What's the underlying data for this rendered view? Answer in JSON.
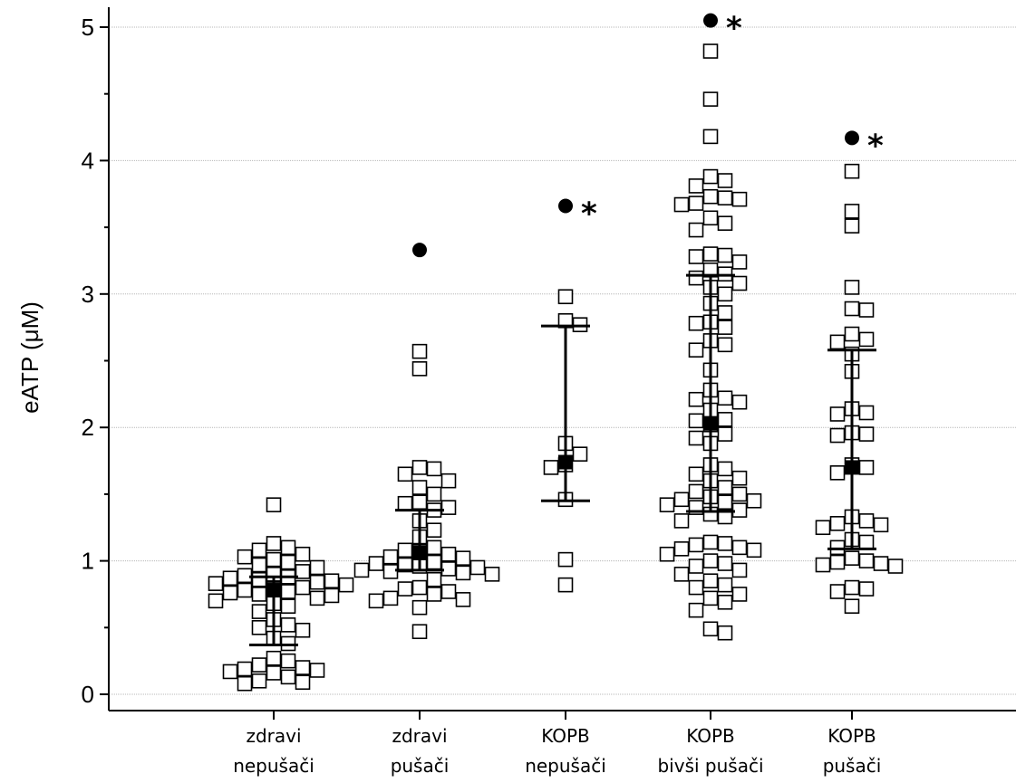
{
  "chart_data": {
    "type": "scatter",
    "ylabel": "eATP (μM)",
    "ylim": [
      0,
      5.2
    ],
    "yticks": [
      "0",
      "1",
      "2",
      "3",
      "4",
      "5"
    ],
    "grid": true,
    "significance_marker": "*",
    "groups": [
      {
        "label_line1": "zdravi",
        "label_line2": "nepušači",
        "median": 0.78,
        "q1": 0.37,
        "q3": 0.88,
        "outlier": null,
        "significant": false,
        "points": [
          1.42,
          1.13,
          1.1,
          1.08,
          1.05,
          1.03,
          1.01,
          0.99,
          0.97,
          0.95,
          0.92,
          0.9,
          0.89,
          0.88,
          0.87,
          0.86,
          0.85,
          0.84,
          0.83,
          0.82,
          0.8,
          0.79,
          0.78,
          0.77,
          0.76,
          0.75,
          0.74,
          0.72,
          0.7,
          0.68,
          0.66,
          0.62,
          0.56,
          0.52,
          0.5,
          0.48,
          0.42,
          0.38,
          0.27,
          0.25,
          0.22,
          0.2,
          0.19,
          0.18,
          0.17,
          0.16,
          0.13,
          0.1,
          0.09,
          0.08
        ]
      },
      {
        "label_line1": "zdravi",
        "label_line2": "pušači",
        "median": 1.06,
        "q1": 0.93,
        "q3": 1.38,
        "outlier": 3.33,
        "significant": false,
        "points": [
          2.57,
          2.44,
          1.7,
          1.69,
          1.65,
          1.6,
          1.55,
          1.5,
          1.44,
          1.43,
          1.4,
          1.38,
          1.3,
          1.23,
          1.18,
          1.1,
          1.08,
          1.07,
          1.05,
          1.03,
          1.02,
          0.99,
          0.98,
          0.97,
          0.96,
          0.95,
          0.94,
          0.93,
          0.92,
          0.91,
          0.9,
          0.86,
          0.8,
          0.79,
          0.77,
          0.75,
          0.72,
          0.71,
          0.7,
          0.65,
          0.47
        ]
      },
      {
        "label_line1": "KOPB",
        "label_line2": "nepušači",
        "median": 1.74,
        "q1": 1.45,
        "q3": 2.76,
        "outlier": 3.66,
        "significant": true,
        "points": [
          2.98,
          2.8,
          2.77,
          1.88,
          1.8,
          1.72,
          1.7,
          1.46,
          1.01,
          0.82
        ]
      },
      {
        "label_line1": "KOPB",
        "label_line2": "bivši pušači",
        "median": 2.03,
        "q1": 1.37,
        "q3": 3.14,
        "outlier": 5.05,
        "significant": true,
        "points": [
          4.82,
          4.46,
          4.18,
          3.88,
          3.85,
          3.81,
          3.73,
          3.72,
          3.71,
          3.68,
          3.67,
          3.57,
          3.53,
          3.48,
          3.3,
          3.29,
          3.28,
          3.24,
          3.18,
          3.15,
          3.12,
          3.08,
          3.05,
          3.0,
          2.93,
          2.86,
          2.79,
          2.78,
          2.75,
          2.65,
          2.62,
          2.58,
          2.43,
          2.28,
          2.22,
          2.21,
          2.19,
          2.13,
          2.06,
          2.05,
          2.02,
          1.95,
          1.92,
          1.88,
          1.72,
          1.69,
          1.65,
          1.62,
          1.6,
          1.55,
          1.52,
          1.5,
          1.48,
          1.46,
          1.45,
          1.44,
          1.42,
          1.4,
          1.38,
          1.35,
          1.33,
          1.3,
          1.14,
          1.13,
          1.12,
          1.1,
          1.09,
          1.08,
          1.05,
          1.0,
          0.98,
          0.96,
          0.93,
          0.9,
          0.85,
          0.82,
          0.8,
          0.75,
          0.72,
          0.69,
          0.63,
          0.49,
          0.46
        ]
      },
      {
        "label_line1": "KOPB",
        "label_line2": "pušači",
        "median": 1.7,
        "q1": 1.09,
        "q3": 2.58,
        "outlier": 4.17,
        "significant": true,
        "points": [
          3.92,
          3.62,
          3.51,
          3.05,
          2.89,
          2.88,
          2.7,
          2.66,
          2.64,
          2.55,
          2.42,
          2.14,
          2.11,
          2.1,
          1.96,
          1.95,
          1.94,
          1.72,
          1.7,
          1.66,
          1.33,
          1.3,
          1.28,
          1.27,
          1.25,
          1.16,
          1.14,
          1.1,
          1.02,
          1.0,
          0.99,
          0.98,
          0.97,
          0.96,
          0.8,
          0.79,
          0.77,
          0.66
        ]
      }
    ]
  }
}
